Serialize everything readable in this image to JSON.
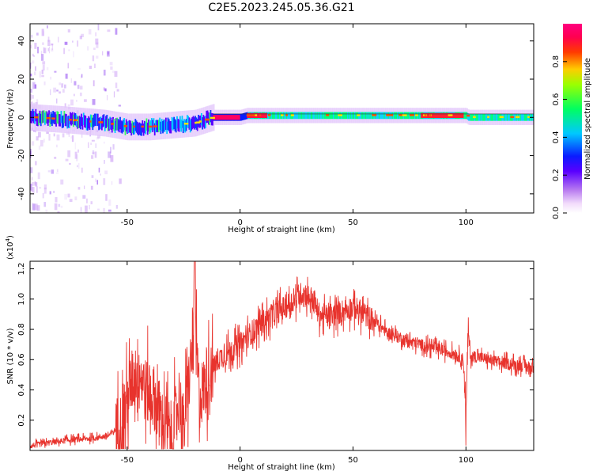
{
  "title": "C2E5.2023.245.05.36.G21",
  "spectrogram": {
    "xlabel": "Height of straight line (km)",
    "ylabel": "Frequency (Hz)",
    "xlim": [
      -93,
      130
    ],
    "ylim": [
      -50,
      49
    ],
    "xticks": [
      -50,
      0,
      50,
      100
    ],
    "yticks": [
      -40,
      -20,
      0,
      20,
      40
    ],
    "colorbar": {
      "label": "Normalized spectral amplitude",
      "range": [
        0,
        1
      ],
      "ticks": [
        "0.0",
        "0.2",
        "0.4",
        "0.6",
        "0.8"
      ],
      "tick_values": [
        0,
        0.2,
        0.4,
        0.6,
        0.8
      ]
    }
  },
  "chart_data": [
    {
      "type": "heatmap",
      "title": "C2E5.2023.245.05.36.G21",
      "xlabel": "Height of straight line (km)",
      "ylabel": "Frequency (Hz)",
      "xlim": [
        -93,
        130
      ],
      "ylim": [
        -50,
        49
      ],
      "colorbar_label": "Normalized spectral amplitude",
      "ridge": {
        "description_points_km": [
          -93,
          -80,
          -70,
          -60,
          -50,
          -40,
          -30,
          -20,
          -12,
          0,
          3,
          10,
          20,
          50,
          80,
          100,
          101,
          130
        ],
        "frequency_hz": [
          0,
          -1,
          -2,
          -3,
          -5,
          -5,
          -4,
          -3,
          0,
          0,
          1,
          1,
          1,
          1,
          1,
          1,
          0,
          0
        ]
      }
    },
    {
      "type": "line",
      "xlabel": "Height of straight line (km)",
      "ylabel": "SNR (10 * v/v)",
      "y_exponent": "(x10⁴)",
      "xlim": [
        -93,
        130
      ],
      "ylim": [
        0,
        1.25
      ],
      "xticks": [
        -50,
        0,
        50,
        100
      ],
      "yticks": [
        0.2,
        0.4,
        0.6,
        0.8,
        1.0,
        1.2
      ],
      "series": [
        {
          "color": "#e8332d",
          "x": [
            -93,
            -85,
            -75,
            -65,
            -58,
            -52,
            -48,
            -45,
            -42,
            -38,
            -35,
            -30,
            -27,
            -25,
            -22,
            -20,
            -18,
            -15,
            -10,
            -5,
            0,
            5,
            10,
            15,
            20,
            25,
            28,
            32,
            35,
            40,
            45,
            50,
            55,
            60,
            65,
            70,
            75,
            80,
            85,
            90,
            95,
            99,
            100,
            101,
            102,
            105,
            110,
            115,
            120,
            125,
            130
          ],
          "y": [
            0.03,
            0.05,
            0.07,
            0.08,
            0.1,
            0.18,
            0.45,
            0.55,
            0.4,
            0.35,
            0.2,
            0.1,
            0.35,
            0.15,
            0.55,
            0.8,
            0.35,
            0.45,
            0.6,
            0.65,
            0.7,
            0.78,
            0.85,
            0.9,
            0.95,
            1.0,
            1.05,
            1.0,
            0.9,
            0.88,
            0.92,
            0.95,
            0.9,
            0.85,
            0.78,
            0.75,
            0.72,
            0.7,
            0.68,
            0.66,
            0.64,
            0.6,
            0.18,
            0.8,
            0.62,
            0.62,
            0.6,
            0.58,
            0.57,
            0.56,
            0.54
          ]
        }
      ]
    }
  ],
  "snr": {
    "ylabel": "SNR (10 * v/v)",
    "exponent_label": "(x10",
    "exponent_power": "4",
    "exponent_close": ")",
    "xlabel": "Height of straight line (km)",
    "xticks": [
      -50,
      0,
      50,
      100
    ],
    "yticks": [
      "0.2",
      "0.4",
      "0.6",
      "0.8",
      "1.0",
      "1.2"
    ],
    "ytick_values": [
      0.2,
      0.4,
      0.6,
      0.8,
      1.0,
      1.2
    ]
  }
}
